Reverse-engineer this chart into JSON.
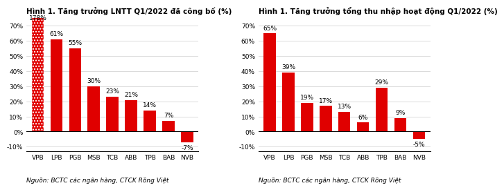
{
  "chart1": {
    "title": "Hình 1. Tăng trưởng LNTT Q1/2022 đã công bố (%)",
    "categories": [
      "VPB",
      "LPB",
      "PGB",
      "MSB",
      "TCB",
      "ABB",
      "TPB",
      "BAB",
      "NVB"
    ],
    "values": [
      178,
      61,
      55,
      30,
      23,
      21,
      14,
      7,
      -7
    ],
    "hatched": [
      true,
      false,
      false,
      false,
      false,
      false,
      false,
      false,
      false
    ],
    "bar_color": "#e00000",
    "source": "Nguồn: BCTC các ngân hàng, CTCK Rồng Việt",
    "ylim": [
      -13,
      75
    ],
    "yticks": [
      -10,
      0,
      10,
      20,
      30,
      40,
      50,
      60,
      70
    ]
  },
  "chart2": {
    "title": "Hình 1. Tăng trưởng tổng thu nhập hoạt động Q1/2022 (%)",
    "categories": [
      "VPB",
      "LPB",
      "PGB",
      "MSB",
      "TCB",
      "ABB",
      "TPB",
      "BAB",
      "NVB"
    ],
    "values": [
      65,
      39,
      19,
      17,
      13,
      6,
      29,
      9,
      -5
    ],
    "hatched": [
      false,
      false,
      false,
      false,
      false,
      false,
      false,
      false,
      false
    ],
    "bar_color": "#e00000",
    "source": "Nguồn: BCTC các ngân hàng, CTCK Rồng Việt",
    "ylim": [
      -13,
      75
    ],
    "yticks": [
      -10,
      0,
      10,
      20,
      30,
      40,
      50,
      60,
      70
    ]
  },
  "title_fontsize": 7.5,
  "label_fontsize": 6.5,
  "tick_fontsize": 6.5,
  "source_fontsize": 6.5
}
